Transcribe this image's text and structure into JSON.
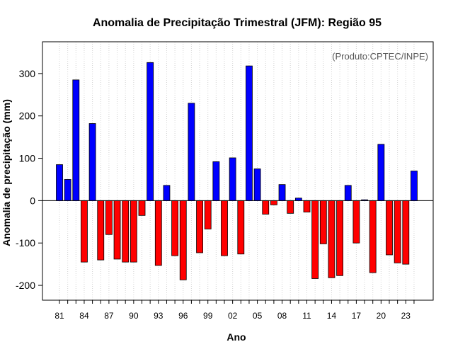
{
  "chart_data": {
    "type": "bar",
    "title": "Anomalia de Precipitação Trimestral (JFM): Região 95",
    "xlabel": "Ano",
    "ylabel": "Anomalia de precipitação (mm)",
    "annotation": "(Produto:CPTEC/INPE)",
    "ylim": [
      -235,
      375
    ],
    "yticks": [
      -200,
      -100,
      0,
      100,
      200,
      300
    ],
    "grid": true,
    "positive_color": "#0000ff",
    "negative_color": "#ff0000",
    "categories": [
      "81",
      "82",
      "83",
      "84",
      "85",
      "86",
      "87",
      "88",
      "89",
      "90",
      "91",
      "92",
      "93",
      "94",
      "95",
      "96",
      "97",
      "98",
      "99",
      "00",
      "01",
      "02",
      "03",
      "04",
      "05",
      "06",
      "07",
      "08",
      "09",
      "10",
      "11",
      "12",
      "13",
      "14",
      "15",
      "16",
      "17",
      "18",
      "19",
      "20",
      "21",
      "22",
      "23",
      "24"
    ],
    "xtick_labels": [
      "81",
      "84",
      "87",
      "90",
      "93",
      "96",
      "99",
      "02",
      "05",
      "08",
      "11",
      "14",
      "17",
      "20",
      "23"
    ],
    "values": [
      85,
      50,
      285,
      -145,
      182,
      -140,
      -80,
      -138,
      -145,
      -145,
      -35,
      326,
      -153,
      36,
      -130,
      -187,
      230,
      -123,
      -67,
      92,
      -130,
      101,
      -126,
      318,
      75,
      -32,
      -10,
      38,
      -30,
      6,
      -27,
      -184,
      -102,
      -182,
      -177,
      36,
      -100,
      2,
      -170,
      133,
      -128,
      -147,
      -150,
      70
    ]
  }
}
